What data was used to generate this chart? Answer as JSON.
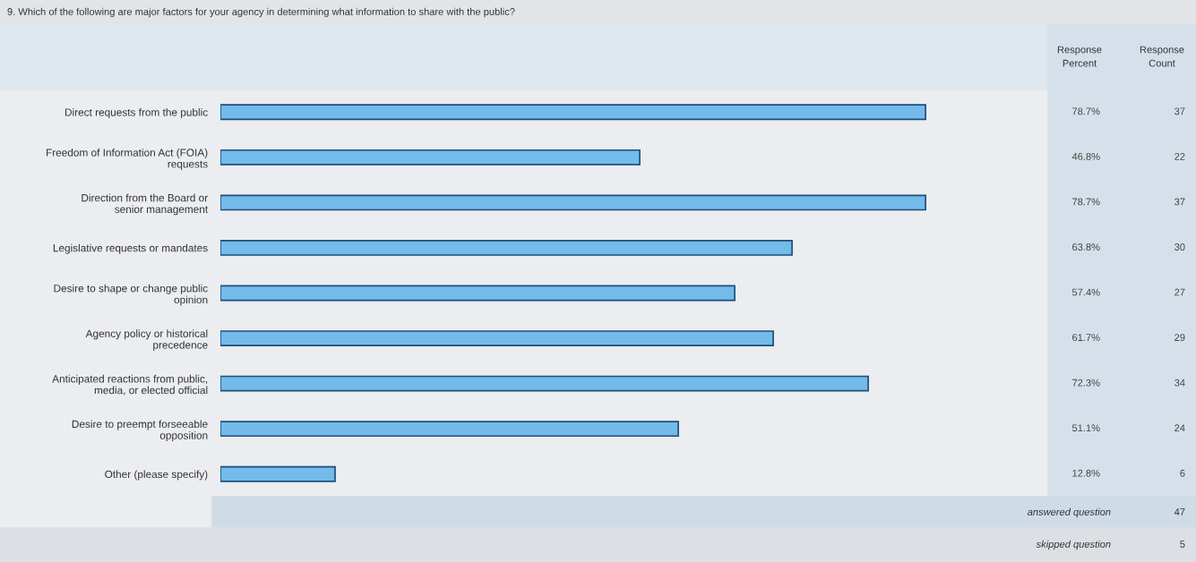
{
  "chart_data": {
    "type": "bar",
    "orientation": "horizontal",
    "title": "9. Which of the following are major factors for your agency in determining what information to share with the public?",
    "categories": [
      "Direct requests from the public",
      "Freedom of Information Act (FOIA)\nrequests",
      "Direction from the Board or\nsenior management",
      "Legislative requests or mandates",
      "Desire to shape or change public\nopinion",
      "Agency policy or historical\nprecedence",
      "Anticipated reactions from public,\nmedia, or elected official",
      "Desire to preempt forseeable\nopposition",
      "Other (please specify)"
    ],
    "values": [
      78.7,
      46.8,
      78.7,
      63.8,
      57.4,
      61.7,
      72.3,
      51.1,
      12.8
    ],
    "value_labels": [
      "78.7%",
      "46.8%",
      "78.7%",
      "63.8%",
      "57.4%",
      "61.7%",
      "72.3%",
      "51.1%",
      "12.8%"
    ],
    "color": "#72bbea",
    "tick_labels": "y",
    "annotations": [
      "Response\nPercent",
      "Response\nCount",
      "37",
      "22",
      "37",
      "30",
      "27",
      "29",
      "34",
      "24",
      "6",
      "answered question",
      "47",
      "skipped question",
      "5"
    ]
  }
}
